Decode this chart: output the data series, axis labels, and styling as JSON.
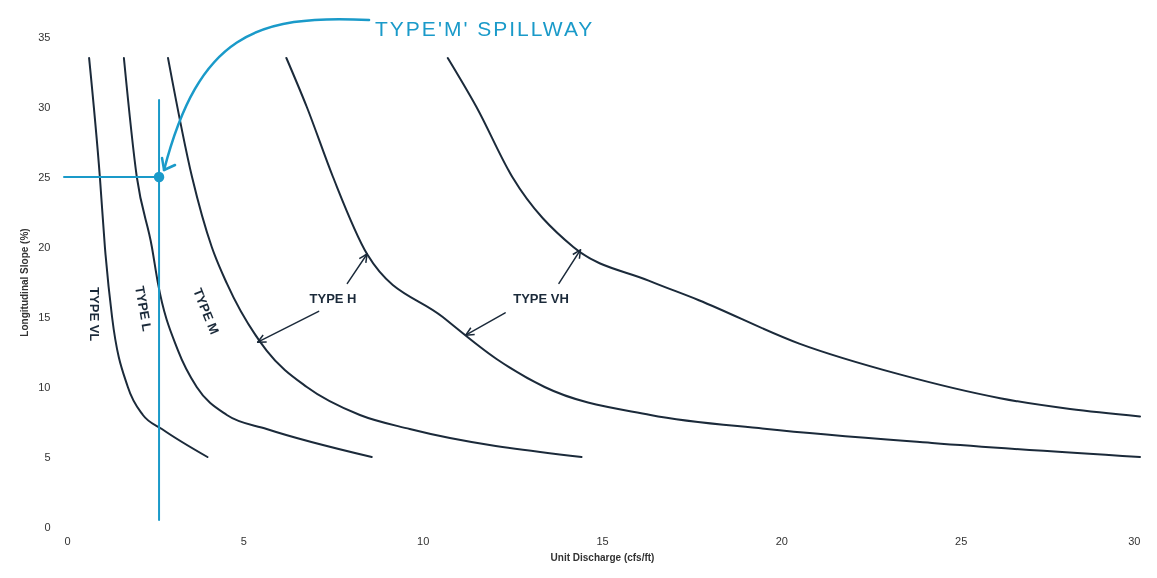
{
  "chart_data": {
    "type": "line",
    "xlabel": "Unit Discharge (cfs/ft)",
    "ylabel": "Longitudinal Slope (%)",
    "xlim": [
      0,
      30
    ],
    "xticks": [
      0,
      5,
      10,
      15,
      20,
      25,
      30
    ],
    "ylim": [
      0,
      35
    ],
    "yticks": [
      0,
      5,
      10,
      15,
      20,
      25,
      30,
      35
    ],
    "marker": "none",
    "line_style": "solid",
    "series": [
      {
        "name": "TYPE VL",
        "color": "#1b2a3a",
        "x": [
          0.7,
          1.0,
          1.14,
          1.34,
          1.78,
          2.2,
          2.73,
          4.0
        ],
        "values": [
          33.5,
          25,
          20,
          15,
          10,
          8,
          7,
          5
        ]
      },
      {
        "name": "TYPE L",
        "color": "#1b2a3a",
        "x": [
          1.67,
          2.03,
          2.45,
          2.62,
          3.18,
          3.7,
          4.54,
          5.65,
          8.58
        ],
        "values": [
          33.5,
          25,
          20,
          17.4,
          12.6,
          10,
          8,
          7,
          5
        ]
      },
      {
        "name": "TYPE M",
        "color": "#1b2a3a",
        "x": [
          2.9,
          3.57,
          4.12,
          4.54,
          5.65,
          6.77,
          8.25,
          9.64,
          14.43
        ],
        "values": [
          33.5,
          25,
          20,
          17.4,
          12.6,
          10,
          8,
          7,
          5
        ]
      },
      {
        "name": "TYPE H",
        "color": "#1b2a3a",
        "x": [
          6.2,
          6.77,
          7.5,
          8.45,
          10.56,
          12.06,
          13.4,
          16.35,
          19.6,
          24.2,
          30
        ],
        "values": [
          33.5,
          30,
          25,
          19.5,
          15,
          12,
          10,
          8,
          7,
          6,
          5
        ]
      },
      {
        "name": "TYPE VH",
        "color": "#1b2a3a",
        "x": [
          10.7,
          11.5,
          12.5,
          14.2,
          16.3,
          17.7,
          20.5,
          23.3,
          26.1,
          30
        ],
        "values": [
          33.5,
          30,
          25,
          20,
          17.6,
          16.2,
          13.1,
          10.9,
          9.2,
          7.9
        ]
      },
      {
        "color": "#1a9ac9",
        "x": [
          0,
          2.65
        ],
        "values": [
          25,
          25
        ]
      },
      {
        "color": "#1a9ac9",
        "x": [
          2.65,
          2.65
        ],
        "values": [
          0.5,
          30.5
        ]
      },
      {
        "type": "scatter",
        "marker": "circle",
        "color": "#1a9ac9",
        "x": [
          2.65
        ],
        "values": [
          25
        ]
      }
    ],
    "annotations": [
      {
        "text": "TYPE'M' SPILLWAY",
        "x": 2.65,
        "y": 25
      }
    ]
  }
}
